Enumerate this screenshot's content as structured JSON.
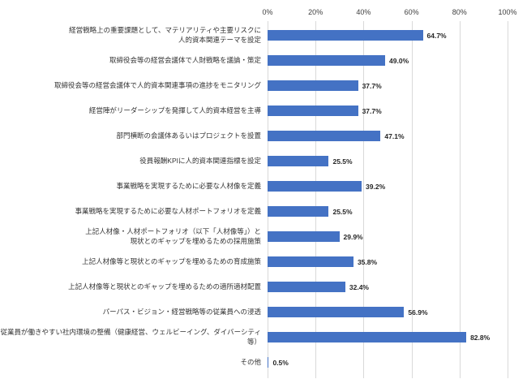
{
  "chart_data": {
    "type": "bar",
    "orientation": "horizontal",
    "axis_position": "top",
    "grid": "vertical",
    "legend": "none",
    "bar_color": "#4472C4",
    "gridline_color": "#D9D9D9",
    "xlim": [
      0,
      100
    ],
    "x_ticks": [
      "0%",
      "20%",
      "40%",
      "60%",
      "80%",
      "100%"
    ],
    "categories": [
      "経営戦略上の重要課題として、マテリアリティや主要リスクに\n人的資本関連テーマを設定",
      "取締役会等の経営会議体で人財戦略を議論・策定",
      "取締役会等の経営会議体で人的資本関連事項の進捗をモニタリング",
      "経営陣がリーダーシップを発揮して人的資本経営を主導",
      "部門横断の会議体あるいはプロジェクトを設置",
      "役員報酬KPIに人的資本関連指標を設定",
      "事業戦略を実現するために必要な人材像を定義",
      "事業戦略を実現するために必要な人材ポートフォリオを定義",
      "上記人材像・人材ポートフォリオ（以下「人材像等」）と\n現状とのギャップを埋めるための採用施策",
      "上記人材像等と現状とのギャップを埋めるための育成施策",
      "上記人材像等と現状とのギャップを埋めるための適所適材配置",
      "パーパス・ビジョン・経営戦略等の従業員への浸透",
      "従業員が働きやすい社内環境の整備（健康経営、ウェルビーイング、ダイバーシティ\n等）",
      "その他"
    ],
    "values": [
      64.7,
      49.0,
      37.7,
      37.7,
      47.1,
      25.5,
      39.2,
      25.5,
      29.9,
      35.8,
      32.4,
      56.9,
      82.8,
      0.5
    ],
    "value_labels": [
      "64.7%",
      "49.0%",
      "37.7%",
      "37.7%",
      "47.1%",
      "25.5%",
      "39.2%",
      "25.5%",
      "29.9%",
      "35.8%",
      "32.4%",
      "56.9%",
      "82.8%",
      "0.5%"
    ]
  }
}
